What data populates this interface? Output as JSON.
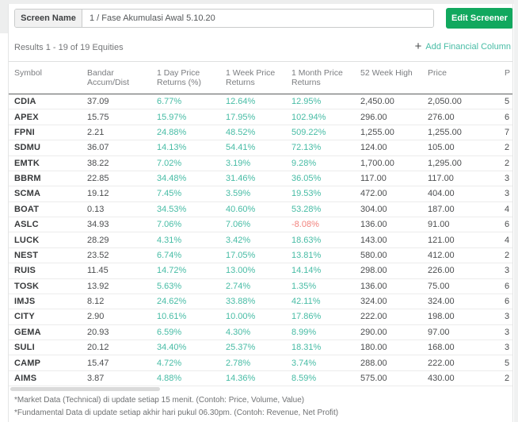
{
  "screen_name": {
    "label": "Screen Name",
    "value": "1 / Fase Akumulasi Awal 5.10.20"
  },
  "edit_button_label": "Edit Screener",
  "results_text": "Results 1 - 19 of 19 Equities",
  "add_column": {
    "plus": "+",
    "label": "Add Financial Column"
  },
  "colors": {
    "accent_green": "#11a85e",
    "positive_teal": "#47bca5",
    "negative_red": "#f2827d"
  },
  "table": {
    "columns": [
      {
        "key": "symbol",
        "line1": "Symbol",
        "line2": ""
      },
      {
        "key": "bandar",
        "line1": "Bandar",
        "line2": "Accum/Dist"
      },
      {
        "key": "d1",
        "line1": "1 Day Price",
        "line2": "Returns (%)",
        "pct": true
      },
      {
        "key": "w1",
        "line1": "1 Week Price",
        "line2": "Returns",
        "pct": true
      },
      {
        "key": "m1",
        "line1": "1 Month Price",
        "line2": "Returns",
        "pct": true
      },
      {
        "key": "high52",
        "line1": "52 Week High",
        "line2": ""
      },
      {
        "key": "price",
        "line1": "Price",
        "line2": ""
      },
      {
        "key": "p",
        "line1": "P",
        "line2": ""
      }
    ],
    "rows": [
      {
        "symbol": "CDIA",
        "bandar": "37.09",
        "d1": "6.77%",
        "w1": "12.64%",
        "m1": "12.95%",
        "high52": "2,450.00",
        "price": "2,050.00",
        "p": "5"
      },
      {
        "symbol": "APEX",
        "bandar": "15.75",
        "d1": "15.97%",
        "w1": "17.95%",
        "m1": "102.94%",
        "high52": "296.00",
        "price": "276.00",
        "p": "6"
      },
      {
        "symbol": "FPNI",
        "bandar": "2.21",
        "d1": "24.88%",
        "w1": "48.52%",
        "m1": "509.22%",
        "high52": "1,255.00",
        "price": "1,255.00",
        "p": "7"
      },
      {
        "symbol": "SDMU",
        "bandar": "36.07",
        "d1": "14.13%",
        "w1": "54.41%",
        "m1": "72.13%",
        "high52": "124.00",
        "price": "105.00",
        "p": "2"
      },
      {
        "symbol": "EMTK",
        "bandar": "38.22",
        "d1": "7.02%",
        "w1": "3.19%",
        "m1": "9.28%",
        "high52": "1,700.00",
        "price": "1,295.00",
        "p": "2"
      },
      {
        "symbol": "BBRM",
        "bandar": "22.85",
        "d1": "34.48%",
        "w1": "31.46%",
        "m1": "36.05%",
        "high52": "117.00",
        "price": "117.00",
        "p": "3"
      },
      {
        "symbol": "SCMA",
        "bandar": "19.12",
        "d1": "7.45%",
        "w1": "3.59%",
        "m1": "19.53%",
        "high52": "472.00",
        "price": "404.00",
        "p": "3"
      },
      {
        "symbol": "BOAT",
        "bandar": "0.13",
        "d1": "34.53%",
        "w1": "40.60%",
        "m1": "53.28%",
        "high52": "304.00",
        "price": "187.00",
        "p": "4"
      },
      {
        "symbol": "ASLC",
        "bandar": "34.93",
        "d1": "7.06%",
        "w1": "7.06%",
        "m1": "-8.08%",
        "high52": "136.00",
        "price": "91.00",
        "p": "6"
      },
      {
        "symbol": "LUCK",
        "bandar": "28.29",
        "d1": "4.31%",
        "w1": "3.42%",
        "m1": "18.63%",
        "high52": "143.00",
        "price": "121.00",
        "p": "4"
      },
      {
        "symbol": "NEST",
        "bandar": "23.52",
        "d1": "6.74%",
        "w1": "17.05%",
        "m1": "13.81%",
        "high52": "580.00",
        "price": "412.00",
        "p": "2"
      },
      {
        "symbol": "RUIS",
        "bandar": "11.45",
        "d1": "14.72%",
        "w1": "13.00%",
        "m1": "14.14%",
        "high52": "298.00",
        "price": "226.00",
        "p": "3"
      },
      {
        "symbol": "TOSK",
        "bandar": "13.92",
        "d1": "5.63%",
        "w1": "2.74%",
        "m1": "1.35%",
        "high52": "136.00",
        "price": "75.00",
        "p": "6"
      },
      {
        "symbol": "IMJS",
        "bandar": "8.12",
        "d1": "24.62%",
        "w1": "33.88%",
        "m1": "42.11%",
        "high52": "324.00",
        "price": "324.00",
        "p": "6"
      },
      {
        "symbol": "CITY",
        "bandar": "2.90",
        "d1": "10.61%",
        "w1": "10.00%",
        "m1": "17.86%",
        "high52": "222.00",
        "price": "198.00",
        "p": "3"
      },
      {
        "symbol": "GEMA",
        "bandar": "20.93",
        "d1": "6.59%",
        "w1": "4.30%",
        "m1": "8.99%",
        "high52": "290.00",
        "price": "97.00",
        "p": "3"
      },
      {
        "symbol": "SULI",
        "bandar": "20.12",
        "d1": "34.40%",
        "w1": "25.37%",
        "m1": "18.31%",
        "high52": "180.00",
        "price": "168.00",
        "p": "3"
      },
      {
        "symbol": "CAMP",
        "bandar": "15.47",
        "d1": "4.72%",
        "w1": "2.78%",
        "m1": "3.74%",
        "high52": "288.00",
        "price": "222.00",
        "p": "5"
      },
      {
        "symbol": "AIMS",
        "bandar": "3.87",
        "d1": "4.88%",
        "w1": "14.36%",
        "m1": "8.59%",
        "high52": "575.00",
        "price": "430.00",
        "p": "2"
      }
    ]
  },
  "footnotes": [
    "*Market Data (Technical) di update setiap 15 menit. (Contoh: Price, Volume, Value)",
    "*Fundamental Data di update setiap akhir hari pukul 06.30pm. (Contoh: Revenue, Net Profit)"
  ]
}
